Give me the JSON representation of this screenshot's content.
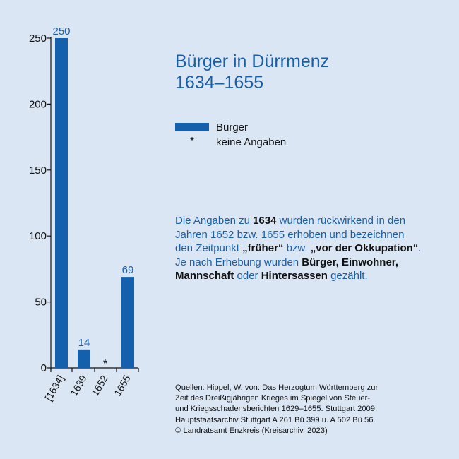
{
  "chart_data": {
    "type": "bar",
    "title": "Bürger in Dürrmenz 1634–1655",
    "categories": [
      "[1634]",
      "1639",
      "1652",
      "1655"
    ],
    "values": [
      250,
      14,
      null,
      69
    ],
    "data_labels": [
      "250",
      "14",
      "*",
      "69"
    ],
    "yticks": [
      0,
      50,
      100,
      150,
      200,
      250
    ],
    "ylim": [
      0,
      250
    ],
    "grid": false,
    "legend_position": "right",
    "series": [
      {
        "name": "Bürger",
        "values": [
          250,
          14,
          null,
          69
        ]
      }
    ]
  },
  "title": {
    "line1": "Bürger in Dürrmenz",
    "line2": "1634–1655"
  },
  "legend": {
    "series_label": "Bürger",
    "missing_symbol": "*",
    "missing_label": "keine Angaben"
  },
  "note": {
    "t1": "Die Angaben zu ",
    "b1": "1634",
    "t2": " wurden rückwirkend in den Jahren 1652 bzw. 1655 erhoben und bezeichnen den Zeitpunkt ",
    "b2": "„früher“",
    "t3": " bzw. ",
    "b3": "„vor der Okkupation“",
    "t4": ". Je nach Erhebung wurden ",
    "b4": "Bürger, Einwohner, Mannschaft",
    "t5": " oder ",
    "b5": "Hintersassen",
    "t6": " gezählt."
  },
  "sources": [
    "Quellen: Hippel, W. von: Das Herzogtum Württemberg zur",
    "Zeit des Dreißigjährigen Krieges im Spiegel von Steuer-",
    "und Kriegsschadensberichten 1629–1655. Stuttgart 2009;",
    "Hauptstaatsarchiv Stuttgart A 261 Bü 399 u. A 502 Bü 56.",
    "© Landratsamt Enzkreis (Kreisarchiv, 2023)"
  ],
  "colors": {
    "bar": "#1560ac",
    "accent_text": "#1a5ea6",
    "background": "#dbe6f4"
  }
}
